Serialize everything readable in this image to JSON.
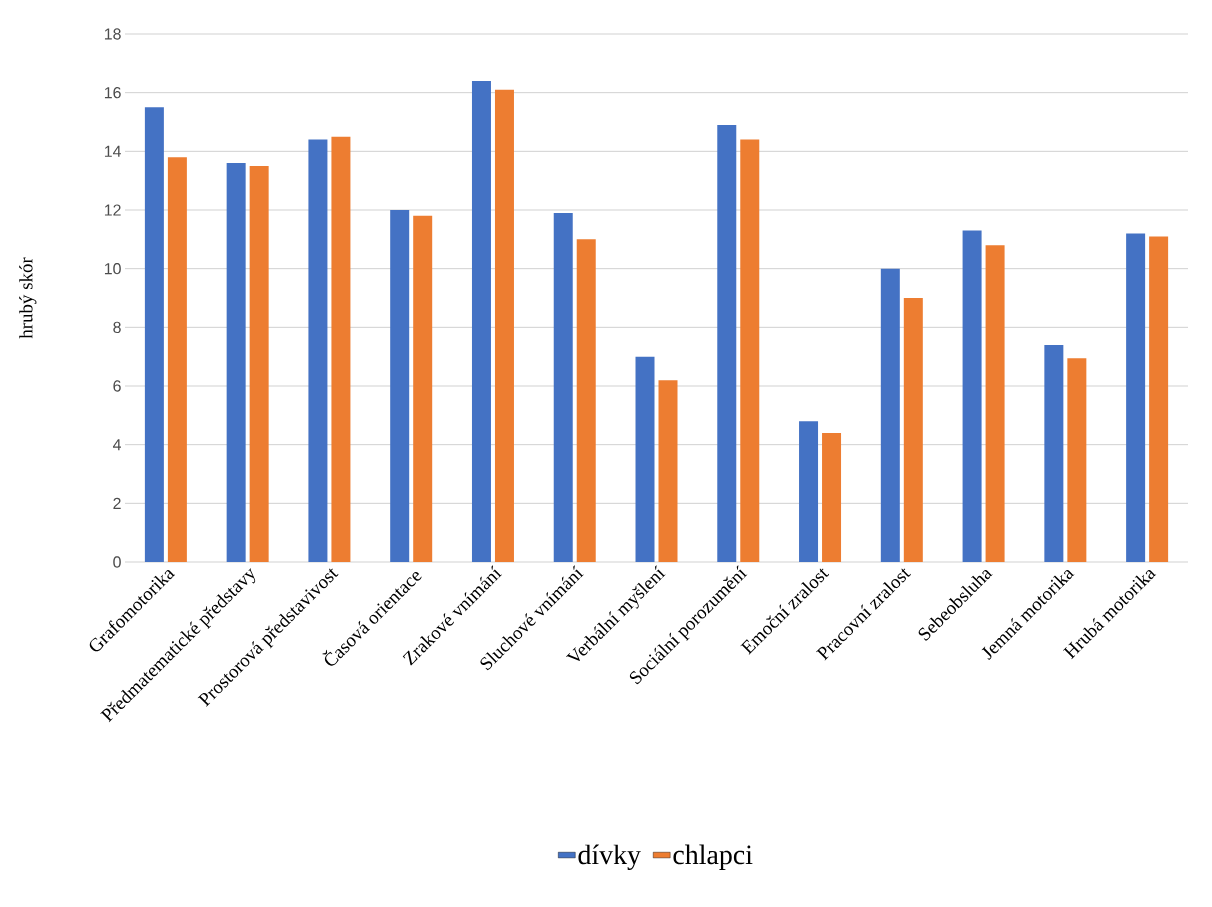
{
  "chart_data": {
    "type": "bar",
    "ylabel": "hrubý skór",
    "categories": [
      "Grafomotorika",
      "Předmatematické představy",
      "Prostorová představivost",
      "Časová orientace",
      "Zrakové vnímání",
      "Sluchové vnímání",
      "Verbální myšlení",
      "Sociální porozumění",
      "Emoční zralost",
      "Pracovní zralost",
      "Sebeobsluha",
      "Jemná motorika",
      "Hrubá motorika"
    ],
    "series": [
      {
        "name": "dívky",
        "color": "#4472c4",
        "values": [
          15.5,
          13.6,
          14.4,
          12.0,
          16.4,
          11.9,
          7.0,
          14.9,
          4.8,
          10.0,
          11.3,
          7.4,
          11.2
        ]
      },
      {
        "name": "chlapci",
        "color": "#ed7d31",
        "values": [
          13.8,
          13.5,
          14.5,
          11.8,
          16.1,
          11.0,
          6.2,
          14.4,
          4.4,
          9.0,
          10.8,
          6.95,
          11.1
        ]
      }
    ],
    "ylim": [
      0,
      18
    ],
    "yticks": [
      0,
      2,
      4,
      6,
      8,
      10,
      12,
      14,
      16,
      18
    ],
    "grid": "y",
    "legend": "bottom"
  }
}
